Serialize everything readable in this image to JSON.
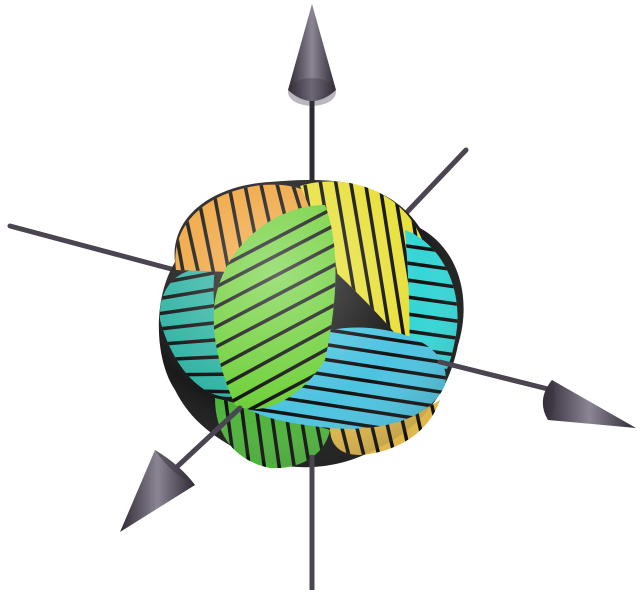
{
  "figure": {
    "kind": "3d-knot-with-axes",
    "background": "#ffffff",
    "axis_color": "#4a4550",
    "arrowhead_color": "#5b5566",
    "axes": [
      {
        "id": "z-axis",
        "has_arrow": true
      },
      {
        "id": "x-axis",
        "has_arrow": true
      },
      {
        "id": "y-axis",
        "has_arrow": true
      }
    ],
    "knot": {
      "stripe_color": "#111111",
      "lobes": [
        {
          "id": "upper-left",
          "color": "#f0a33a"
        },
        {
          "id": "upper-right",
          "color": "#e8e03a"
        },
        {
          "id": "front-center",
          "color": "#6fd03a"
        },
        {
          "id": "left",
          "color": "#2fb3a3"
        },
        {
          "id": "right",
          "color": "#35d6d6"
        },
        {
          "id": "front-bottom",
          "color": "#4cc3e0"
        },
        {
          "id": "bottom",
          "color": "#4db33a"
        },
        {
          "id": "bottom-right",
          "color": "#e0b74a"
        }
      ]
    }
  }
}
